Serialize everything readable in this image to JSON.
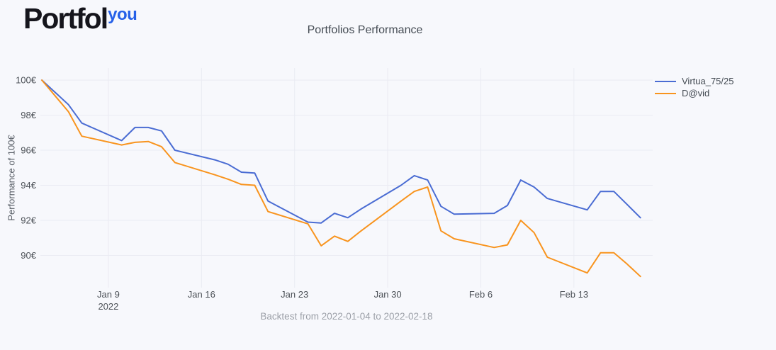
{
  "logo": {
    "text": "Portfol",
    "suffix": "you",
    "suffix_color": "#2560e8"
  },
  "chart_data": {
    "type": "line",
    "title": "Portfolios Performance",
    "ylabel": "Performance of 100€",
    "caption": "Backtest from 2022-01-04 to 2022-02-18",
    "grid": true,
    "legend_position": "top-right",
    "x": [
      "2022-01-04",
      "2022-01-05",
      "2022-01-06",
      "2022-01-07",
      "2022-01-10",
      "2022-01-11",
      "2022-01-12",
      "2022-01-13",
      "2022-01-14",
      "2022-01-17",
      "2022-01-18",
      "2022-01-19",
      "2022-01-20",
      "2022-01-21",
      "2022-01-24",
      "2022-01-25",
      "2022-01-26",
      "2022-01-27",
      "2022-01-28",
      "2022-01-31",
      "2022-02-01",
      "2022-02-02",
      "2022-02-03",
      "2022-02-04",
      "2022-02-07",
      "2022-02-08",
      "2022-02-09",
      "2022-02-10",
      "2022-02-11",
      "2022-02-14",
      "2022-02-15",
      "2022-02-16",
      "2022-02-17",
      "2022-02-18"
    ],
    "series": [
      {
        "name": "Virtua_75/25",
        "color": "#4a6cd3",
        "values": [
          100,
          99.3,
          98.6,
          97.55,
          96.55,
          97.3,
          97.3,
          97.1,
          96.0,
          95.45,
          95.2,
          94.75,
          94.7,
          93.1,
          91.9,
          91.85,
          92.4,
          92.15,
          92.65,
          94.0,
          94.55,
          94.3,
          92.8,
          92.35,
          92.4,
          92.85,
          94.3,
          93.9,
          93.25,
          92.6,
          93.65,
          93.65,
          92.9,
          92.15
        ]
      },
      {
        "name": "D@vid",
        "color": "#f8941e",
        "values": [
          100,
          99.1,
          98.2,
          96.8,
          96.3,
          96.45,
          96.5,
          96.2,
          95.3,
          94.6,
          94.35,
          94.05,
          94.0,
          92.5,
          91.8,
          90.55,
          91.1,
          90.8,
          91.4,
          93.1,
          93.65,
          93.9,
          91.4,
          90.95,
          90.45,
          90.6,
          92.0,
          91.3,
          89.9,
          89.0,
          90.15,
          90.15,
          89.5,
          88.8
        ]
      }
    ],
    "yticks": {
      "values": [
        100,
        98,
        96,
        94,
        92,
        90
      ],
      "labels": [
        "100€",
        "98€",
        "96€",
        "94€",
        "92€",
        "90€"
      ]
    },
    "xticks": [
      {
        "date": "2022-01-09",
        "label": "Jan 9",
        "sublabel": "2022"
      },
      {
        "date": "2022-01-16",
        "label": "Jan 16"
      },
      {
        "date": "2022-01-23",
        "label": "Jan 23"
      },
      {
        "date": "2022-01-30",
        "label": "Jan 30"
      },
      {
        "date": "2022-02-06",
        "label": "Feb 6"
      },
      {
        "date": "2022-02-13",
        "label": "Feb 13"
      }
    ],
    "ylim": [
      88.16,
      100.69
    ],
    "xlim_dates": [
      "2022-01-04",
      "2022-02-18"
    ],
    "grid_color": "#eaebf3"
  }
}
